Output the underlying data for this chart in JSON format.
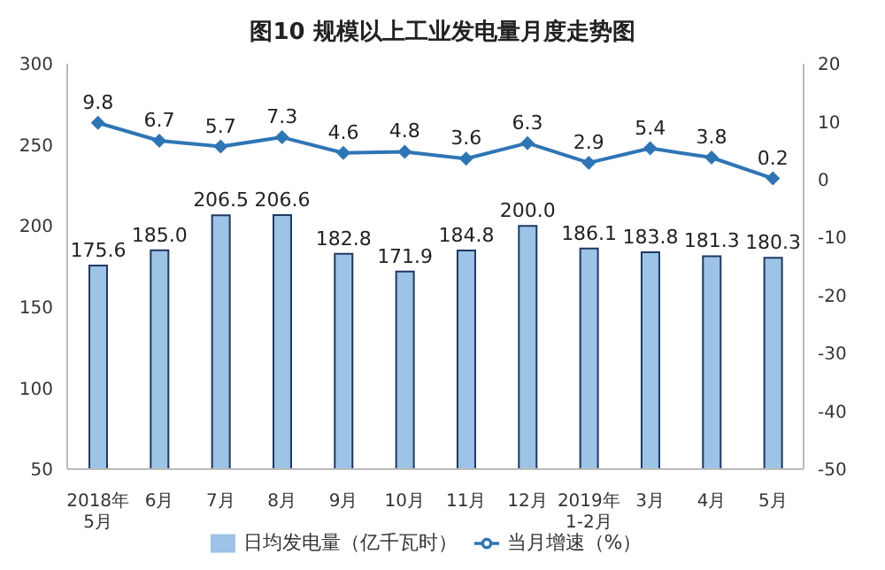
{
  "chart_data": {
    "type": "bar",
    "title": "图10 规模以上工业发电量月度走势图",
    "categories": [
      "2018年\n5月",
      "6月",
      "7月",
      "8月",
      "9月",
      "10月",
      "11月",
      "12月",
      "2019年\n1-2月",
      "3月",
      "4月",
      "5月"
    ],
    "series": [
      {
        "name": "日均发电量（亿千瓦时）",
        "color": "#9dc3e6",
        "values": [
          175.6,
          185.0,
          206.5,
          206.6,
          182.8,
          171.9,
          184.8,
          200.0,
          186.1,
          183.8,
          181.3,
          180.3
        ],
        "value_labels": [
          "175.6",
          "185.0",
          "206.5",
          "206.6",
          "182.8",
          "171.9",
          "184.8",
          "200.0",
          "186.1",
          "183.8",
          "181.3",
          "180.3"
        ]
      },
      {
        "name": "当月增速（%）",
        "type": "line",
        "axis": "y2",
        "color": "#2e75b6",
        "marker": "diamond",
        "values": [
          9.8,
          6.7,
          5.7,
          7.3,
          4.6,
          4.8,
          3.6,
          6.3,
          2.9,
          5.4,
          3.8,
          0.2
        ]
      }
    ],
    "ylim": [
      50,
      300
    ],
    "yticks": [
      50,
      100,
      150,
      200,
      250,
      300
    ],
    "y2lim": [
      -50,
      20
    ],
    "y2ticks": [
      -50,
      -40,
      -30,
      -20,
      -10,
      0,
      10,
      20
    ],
    "data_labels": true,
    "grid": false,
    "legend": "bottom"
  }
}
